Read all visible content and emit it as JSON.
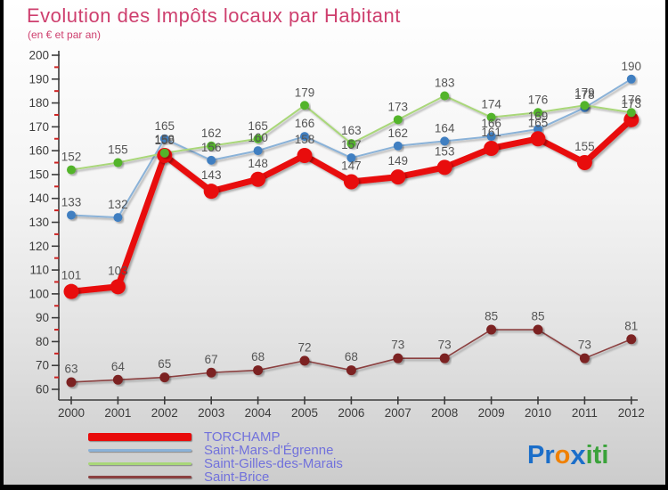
{
  "header": {
    "title": "Evolution des Impôts locaux par Habitant",
    "subtitle": "(en € et par an)"
  },
  "chart_data": {
    "type": "line",
    "x": [
      2000,
      2001,
      2002,
      2003,
      2004,
      2005,
      2006,
      2007,
      2008,
      2009,
      2010,
      2011,
      2012
    ],
    "series": [
      {
        "name": "TORCHAMP",
        "values": [
          101,
          103,
          158,
          143,
          148,
          158,
          147,
          149,
          153,
          161,
          165,
          155,
          173
        ],
        "line_color": "#e80b0b",
        "dot_color": "#e80b0b",
        "line_width": 7,
        "dot_radius": 8.5
      },
      {
        "name": "Saint-Mars-d'Égrenne",
        "values": [
          133,
          132,
          165,
          156,
          160,
          166,
          157,
          162,
          164,
          166,
          169,
          178,
          190
        ],
        "line_color": "#8ab2d8",
        "dot_color": "#417fc1",
        "line_width": 2,
        "dot_radius": 5
      },
      {
        "name": "Saint-Gilles-des-Marais",
        "values": [
          152,
          155,
          159,
          162,
          165,
          179,
          163,
          173,
          183,
          174,
          176,
          179,
          176
        ],
        "line_color": "#a9d779",
        "dot_color": "#53b42c",
        "line_width": 2,
        "dot_radius": 5
      },
      {
        "name": "Saint-Brice",
        "values": [
          63,
          64,
          65,
          67,
          68,
          72,
          68,
          73,
          73,
          85,
          85,
          73,
          81
        ],
        "line_color": "#8b4040",
        "dot_color": "#7c2222",
        "line_width": 1.6,
        "dot_radius": 5.5
      }
    ],
    "ylim": [
      60,
      200
    ],
    "ytick_step": 10,
    "ytick_minor_step": 5,
    "grid": false,
    "legend_position": "bottom-left",
    "axis_color": "#3c3c3c",
    "tick_label_color": "#3c3c3c",
    "minor_tick_color": "#cc2222",
    "point_label_color": "#555555"
  },
  "legend": {
    "text_color": "#7171dc"
  },
  "logo": {
    "segments": [
      {
        "text": "Pr",
        "color": "#1b6ec9",
        "kind": "plain"
      },
      {
        "text": "o",
        "color": "#f08000",
        "kind": "plain"
      },
      {
        "text": "x",
        "color": "#1b6ec9",
        "kind": "x"
      },
      {
        "text": "iti",
        "color": "#3aa23a",
        "kind": "plain"
      }
    ]
  }
}
